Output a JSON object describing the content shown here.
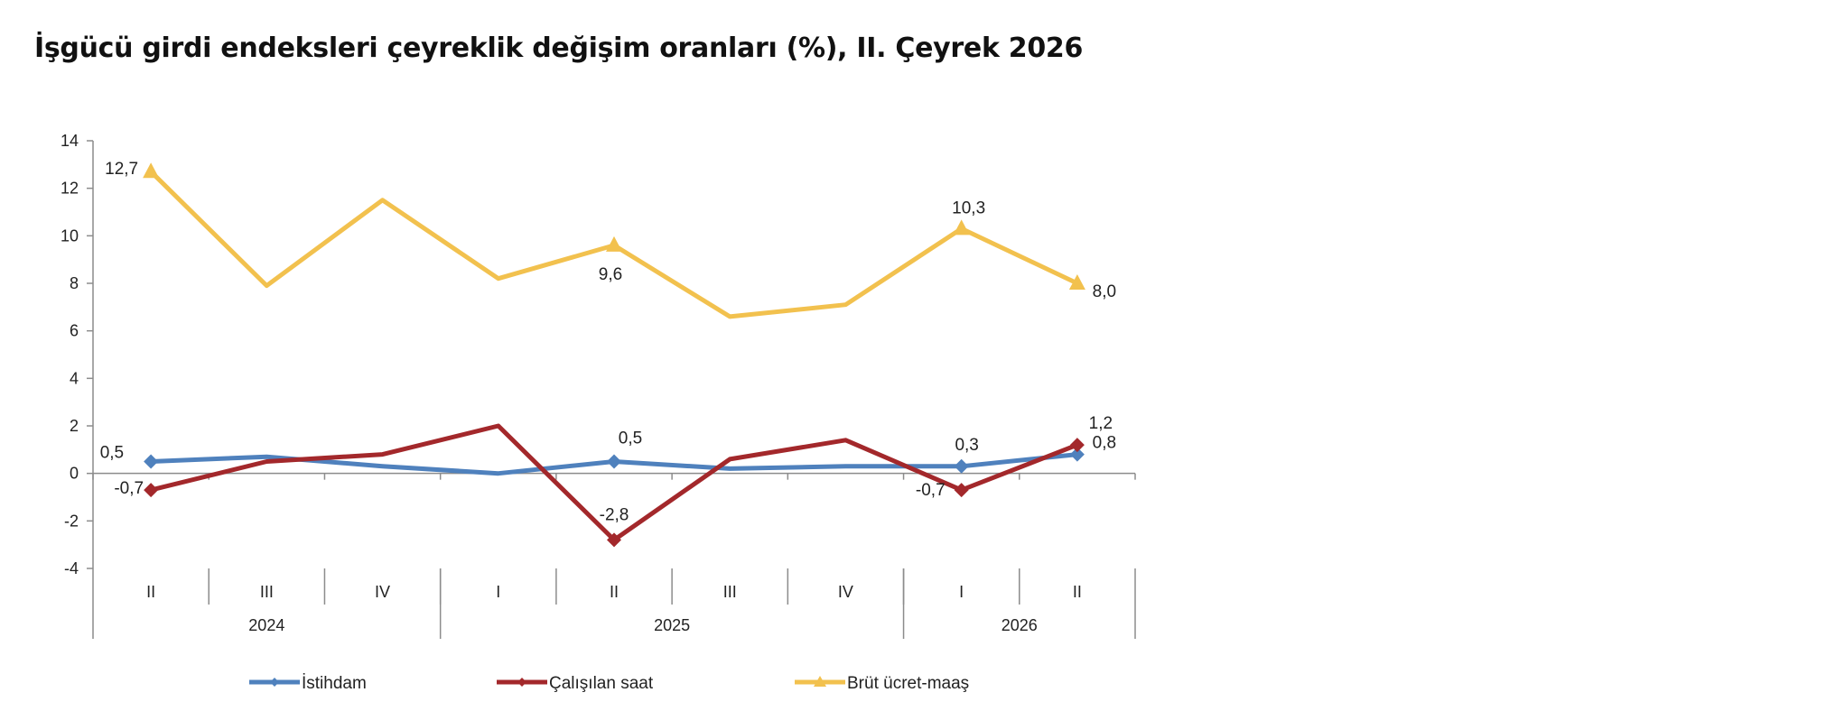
{
  "title": "İşgücü girdi endeksleri çeyreklik değişim oranları (%), II. Çeyrek 2026",
  "chart_data": {
    "type": "line",
    "title": "İşgücü girdi endeksleri çeyreklik değişim oranları (%), II. Çeyrek 2026",
    "xlabel": "",
    "ylabel": "",
    "ylim": [
      -4,
      14
    ],
    "yticks": [
      "-4",
      "-2",
      "0",
      "2",
      "4",
      "6",
      "8",
      "10",
      "12",
      "14"
    ],
    "categories": [
      "II",
      "III",
      "IV",
      "I",
      "II",
      "III",
      "IV",
      "I",
      "II"
    ],
    "year_groups": [
      {
        "label": "2024",
        "span": 3
      },
      {
        "label": "2025",
        "span": 4
      },
      {
        "label": "2026",
        "span": 2
      }
    ],
    "grid": false,
    "legend_position": "bottom",
    "series": [
      {
        "name": "İstihdam",
        "color": "#4F81BD",
        "marker": "diamond",
        "values": [
          0.5,
          0.7,
          0.3,
          0.0,
          0.5,
          0.2,
          0.3,
          0.3,
          0.8
        ],
        "labels": [
          {
            "index": 0,
            "text": "0,5"
          },
          {
            "index": 4,
            "text": "0,5"
          },
          {
            "index": 7,
            "text": "0,3"
          },
          {
            "index": 8,
            "text": "0,8"
          }
        ]
      },
      {
        "name": "Çalışılan saat",
        "color": "#A3282B",
        "marker": "diamond",
        "values": [
          -0.7,
          0.5,
          0.8,
          2.0,
          -2.8,
          0.6,
          1.4,
          -0.7,
          1.2
        ],
        "labels": [
          {
            "index": 0,
            "text": "-0,7"
          },
          {
            "index": 4,
            "text": "-2,8"
          },
          {
            "index": 7,
            "text": "-0,7"
          },
          {
            "index": 8,
            "text": "1,2"
          }
        ]
      },
      {
        "name": "Brüt ücret-maaş",
        "color": "#F2C14E",
        "marker": "triangle",
        "values": [
          12.7,
          7.9,
          11.5,
          8.2,
          9.6,
          6.6,
          7.1,
          10.3,
          8.0
        ],
        "labels": [
          {
            "index": 0,
            "text": "12,7"
          },
          {
            "index": 4,
            "text": "9,6"
          },
          {
            "index": 7,
            "text": "10,3"
          },
          {
            "index": 8,
            "text": "8,0"
          }
        ]
      }
    ]
  }
}
